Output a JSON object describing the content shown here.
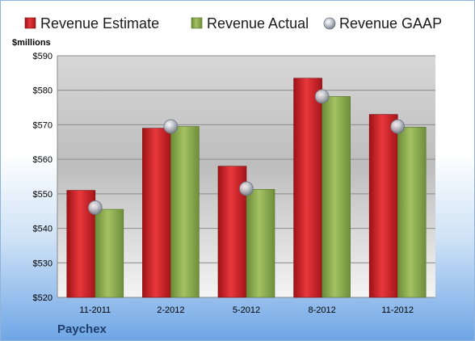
{
  "chart_data": {
    "type": "bar",
    "categories": [
      "11-2011",
      "2-2012",
      "5-2012",
      "8-2012",
      "11-2012"
    ],
    "series": [
      {
        "name": "Revenue Estimate",
        "values": [
          551,
          569,
          558,
          583.5,
          573
        ],
        "color": "#d9262b",
        "kind": "bar"
      },
      {
        "name": "Revenue Actual",
        "values": [
          545.5,
          569.5,
          551.3,
          578.2,
          569.3
        ],
        "color": "#8fae4f",
        "kind": "bar"
      },
      {
        "name": "Revenue GAAP",
        "values": [
          546,
          569.5,
          551.5,
          578.2,
          569.5
        ],
        "color": "#b8c0cc",
        "kind": "marker"
      }
    ],
    "ylabel": "$millions",
    "ylim": [
      520,
      590
    ],
    "yticks": [
      "$520",
      "$530",
      "$540",
      "$550",
      "$560",
      "$570",
      "$580",
      "$590"
    ],
    "ytick_values": [
      520,
      530,
      540,
      550,
      560,
      570,
      580,
      590
    ],
    "grid": true,
    "legend_position": "top"
  },
  "company": "Paychex"
}
